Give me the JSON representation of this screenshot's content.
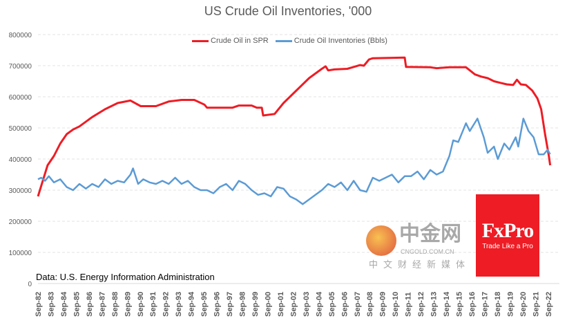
{
  "chart_data": {
    "type": "line",
    "title": "US Crude Oil Inventories, '000",
    "xlabel": "",
    "ylabel": "",
    "ylim": [
      0,
      800000
    ],
    "yticks": [
      0,
      100000,
      200000,
      300000,
      400000,
      500000,
      600000,
      700000,
      800000
    ],
    "xlim": [
      1982.6,
      2023.0
    ],
    "xtick_labels": [
      "Sep-82",
      "Sep-83",
      "Sep-84",
      "Sep-85",
      "Sep-86",
      "Sep-87",
      "Sep-88",
      "Sep-89",
      "Sep-90",
      "Sep-91",
      "Sep-92",
      "Sep-93",
      "Sep-94",
      "Sep-95",
      "Sep-96",
      "Sep-97",
      "Sep-98",
      "Sep-99",
      "Sep-00",
      "Sep-01",
      "Sep-02",
      "Sep-03",
      "Sep-04",
      "Sep-05",
      "Sep-06",
      "Sep-07",
      "Sep-08",
      "Sep-09",
      "Sep-10",
      "Sep-11",
      "Sep-12",
      "Sep-13",
      "Sep-14",
      "Sep-15",
      "Sep-16",
      "Sep-17",
      "Sep-18",
      "Sep-19",
      "Sep-20",
      "Sep-21",
      "Sep-22"
    ],
    "grid": true,
    "legend_position": "top",
    "series": [
      {
        "name": "Crude Oil in SPR",
        "color": "#ee1c24",
        "x": [
          1982.75,
          1983.5,
          1984,
          1984.5,
          1985,
          1985.5,
          1986,
          1987,
          1988,
          1989,
          1990,
          1990.8,
          1992,
          1993,
          1994,
          1995,
          1995.8,
          1996,
          1998,
          1998.5,
          1999.5,
          1999.9,
          2000.3,
          2000.4,
          2001.3,
          2002,
          2003,
          2004,
          2005,
          2005.3,
          2005.5,
          2006,
          2007,
          2008,
          2008.3,
          2008.7,
          2009,
          2011.5,
          2011.6,
          2013.5,
          2014,
          2015,
          2016.3,
          2017,
          2017.5,
          2018,
          2018.5,
          2019,
          2019.5,
          2020,
          2020.3,
          2020.6,
          2021,
          2021.5,
          2021.9,
          2022.2,
          2022.5,
          2022.8,
          2022.9
        ],
        "y": [
          280000,
          380000,
          410000,
          450000,
          480000,
          495000,
          505000,
          535000,
          560000,
          580000,
          588000,
          570000,
          570000,
          585000,
          590000,
          590000,
          575000,
          565000,
          565000,
          572000,
          572000,
          565000,
          565000,
          540000,
          545000,
          580000,
          620000,
          660000,
          690000,
          698000,
          685000,
          688000,
          690000,
          702000,
          700000,
          720000,
          724000,
          726000,
          696000,
          695000,
          692000,
          695000,
          695000,
          672000,
          665000,
          660000,
          650000,
          645000,
          640000,
          638000,
          655000,
          640000,
          638000,
          620000,
          595000,
          560000,
          480000,
          410000,
          380000
        ]
      },
      {
        "name": "Crude Oil Inventories (Bbls)",
        "color": "#5b9bd5",
        "x": [
          1982.75,
          1983,
          1983.3,
          1983.6,
          1984,
          1984.5,
          1985,
          1985.5,
          1986,
          1986.5,
          1987,
          1987.5,
          1988,
          1988.5,
          1989,
          1989.5,
          1990,
          1990.2,
          1990.6,
          1991,
          1991.5,
          1992,
          1992.5,
          1993,
          1993.5,
          1994,
          1994.5,
          1995,
          1995.5,
          1996,
          1996.5,
          1997,
          1997.5,
          1998,
          1998.5,
          1999,
          1999.5,
          2000,
          2000.5,
          2001,
          2001.5,
          2002,
          2002.5,
          2003,
          2003.5,
          2004,
          2004.5,
          2005,
          2005.5,
          2006,
          2006.5,
          2007,
          2007.5,
          2008,
          2008.5,
          2009,
          2009.5,
          2010,
          2010.5,
          2011,
          2011.5,
          2012,
          2012.5,
          2013,
          2013.5,
          2014,
          2014.5,
          2015,
          2015.3,
          2015.7,
          2016.3,
          2016.6,
          2017.2,
          2017.7,
          2018,
          2018.5,
          2018.8,
          2019.3,
          2019.7,
          2020.2,
          2020.4,
          2020.8,
          2021.2,
          2021.6,
          2022,
          2022.4,
          2022.7,
          2022.9
        ],
        "y": [
          335000,
          340000,
          330000,
          345000,
          325000,
          335000,
          310000,
          300000,
          320000,
          305000,
          320000,
          310000,
          335000,
          320000,
          330000,
          325000,
          350000,
          370000,
          320000,
          335000,
          325000,
          320000,
          330000,
          320000,
          340000,
          320000,
          330000,
          310000,
          300000,
          300000,
          290000,
          310000,
          320000,
          300000,
          330000,
          320000,
          300000,
          285000,
          290000,
          280000,
          310000,
          305000,
          280000,
          270000,
          255000,
          270000,
          285000,
          300000,
          320000,
          310000,
          325000,
          300000,
          330000,
          300000,
          295000,
          340000,
          330000,
          340000,
          350000,
          325000,
          345000,
          345000,
          360000,
          335000,
          365000,
          350000,
          360000,
          410000,
          460000,
          455000,
          515000,
          490000,
          530000,
          470000,
          420000,
          440000,
          400000,
          450000,
          430000,
          470000,
          440000,
          530000,
          490000,
          470000,
          415000,
          415000,
          430000,
          415000
        ]
      }
    ]
  },
  "source": "Data: U.S. Energy Information Administration",
  "logo": {
    "brand": "FxPro",
    "tagline": "Trade Like a Pro",
    "color": "#ee1c24"
  },
  "watermark": {
    "name": "中金网",
    "url": "CNGOLD.COM.CN",
    "subtitle": "中文财经新媒体"
  }
}
